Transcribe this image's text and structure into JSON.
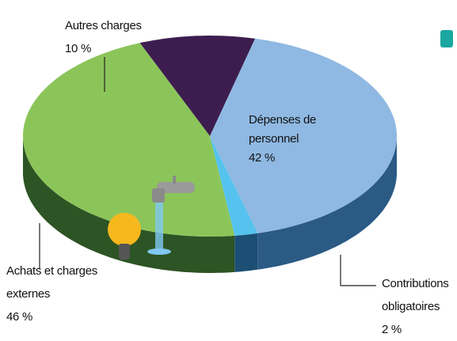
{
  "chart_data": {
    "type": "pie",
    "categories": [
      "Autres charges",
      "Dépenses de personnel",
      "Contributions obligatoires",
      "Achats et charges externes"
    ],
    "values": [
      10,
      42,
      2,
      46
    ],
    "value_labels": [
      "10 %",
      "42 %",
      "2 %",
      "46 %"
    ],
    "colors": [
      "#3d1d4f",
      "#8fb9e2",
      "#55c3ee",
      "#8bc55a"
    ],
    "side_colors": [
      "#24112f",
      "#2b5a85",
      "#1d4e73",
      "#2d5424"
    ]
  }
}
